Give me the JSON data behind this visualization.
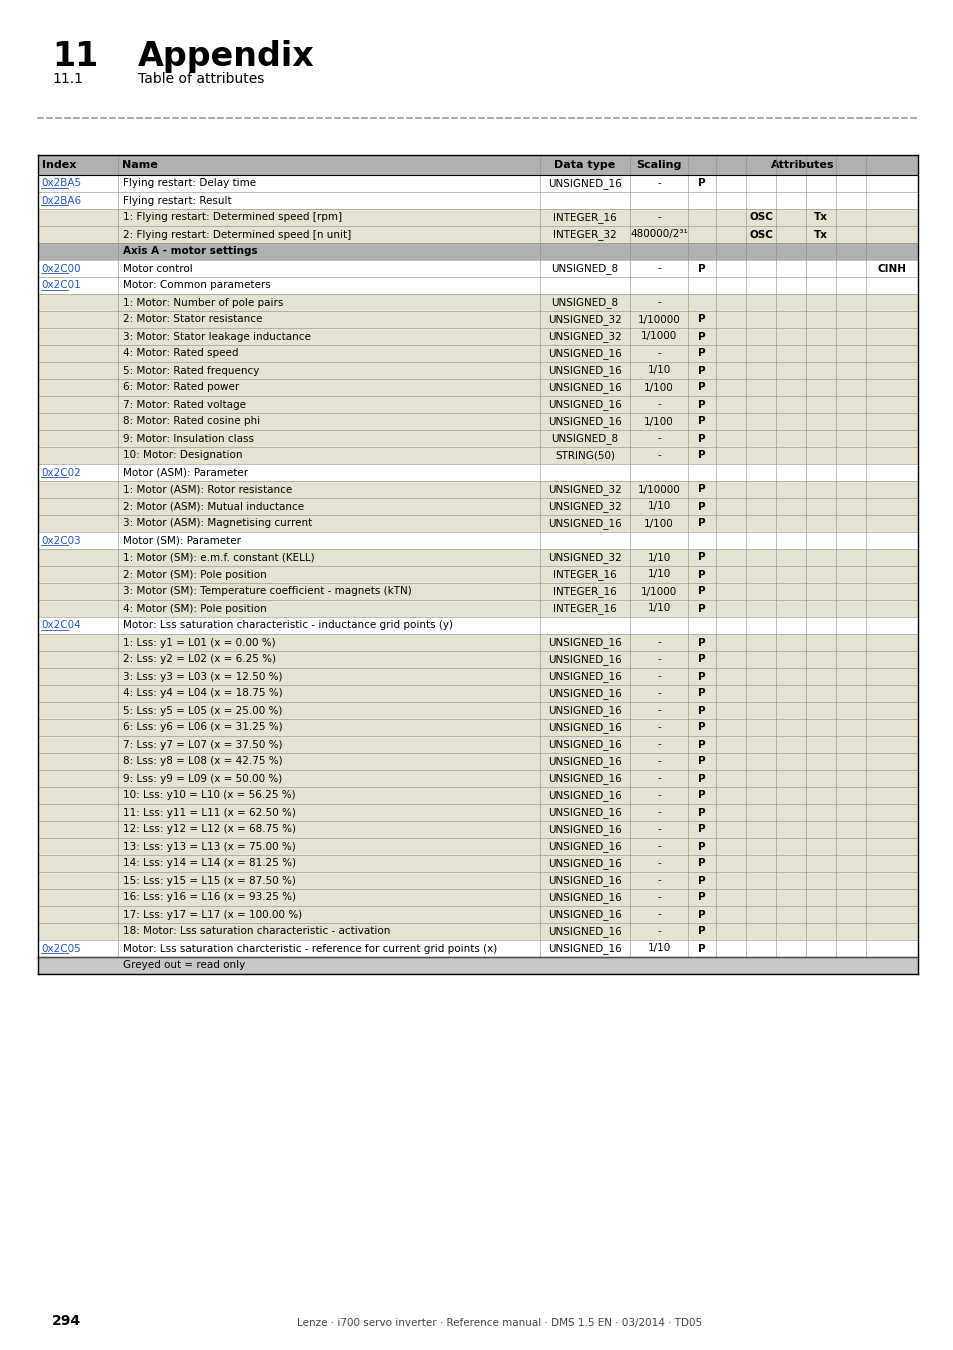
{
  "title_num": "11",
  "title_text": "Appendix",
  "subtitle_num": "11.1",
  "subtitle_text": "Table of attributes",
  "page_footer": "294",
  "page_footer_right": "Lenze · i700 servo inverter · Reference manual · DMS 1.5 EN · 03/2014 · TD05",
  "rows": [
    {
      "index": "0x2BA5",
      "link": true,
      "name": "Flying restart: Delay time",
      "dt": "UNSIGNED_16",
      "sc": "-",
      "P": true,
      "OSC": false,
      "Tx": false,
      "CINH": false,
      "shaded": false,
      "axis_sec": false
    },
    {
      "index": "0x2BA6",
      "link": true,
      "name": "Flying restart: Result",
      "dt": "",
      "sc": "",
      "P": false,
      "OSC": false,
      "Tx": false,
      "CINH": false,
      "shaded": false,
      "axis_sec": false
    },
    {
      "index": "",
      "link": false,
      "name": "1: Flying restart: Determined speed [rpm]",
      "dt": "INTEGER_16",
      "sc": "-",
      "P": false,
      "OSC": true,
      "Tx": true,
      "CINH": false,
      "shaded": true,
      "axis_sec": false
    },
    {
      "index": "",
      "link": false,
      "name": "2: Flying restart: Determined speed [n unit]",
      "dt": "INTEGER_32",
      "sc": "480000/2³¹",
      "P": false,
      "OSC": true,
      "Tx": true,
      "CINH": false,
      "shaded": true,
      "axis_sec": false
    },
    {
      "index": "",
      "link": false,
      "name": "Axis A - motor settings",
      "dt": "",
      "sc": "",
      "P": false,
      "OSC": false,
      "Tx": false,
      "CINH": false,
      "shaded": false,
      "axis_sec": true
    },
    {
      "index": "0x2C00",
      "link": true,
      "name": "Motor control",
      "dt": "UNSIGNED_8",
      "sc": "-",
      "P": true,
      "OSC": false,
      "Tx": false,
      "CINH": true,
      "shaded": false,
      "axis_sec": false
    },
    {
      "index": "0x2C01",
      "link": true,
      "name": "Motor: Common parameters",
      "dt": "",
      "sc": "",
      "P": false,
      "OSC": false,
      "Tx": false,
      "CINH": false,
      "shaded": false,
      "axis_sec": false
    },
    {
      "index": "",
      "link": false,
      "name": "1: Motor: Number of pole pairs",
      "dt": "UNSIGNED_8",
      "sc": "-",
      "P": false,
      "OSC": false,
      "Tx": false,
      "CINH": false,
      "shaded": true,
      "axis_sec": false
    },
    {
      "index": "",
      "link": false,
      "name": "2: Motor: Stator resistance",
      "dt": "UNSIGNED_32",
      "sc": "1/10000",
      "P": true,
      "OSC": false,
      "Tx": false,
      "CINH": false,
      "shaded": true,
      "axis_sec": false
    },
    {
      "index": "",
      "link": false,
      "name": "3: Motor: Stator leakage inductance",
      "dt": "UNSIGNED_32",
      "sc": "1/1000",
      "P": true,
      "OSC": false,
      "Tx": false,
      "CINH": false,
      "shaded": true,
      "axis_sec": false
    },
    {
      "index": "",
      "link": false,
      "name": "4: Motor: Rated speed",
      "dt": "UNSIGNED_16",
      "sc": "-",
      "P": true,
      "OSC": false,
      "Tx": false,
      "CINH": false,
      "shaded": true,
      "axis_sec": false
    },
    {
      "index": "",
      "link": false,
      "name": "5: Motor: Rated frequency",
      "dt": "UNSIGNED_16",
      "sc": "1/10",
      "P": true,
      "OSC": false,
      "Tx": false,
      "CINH": false,
      "shaded": true,
      "axis_sec": false
    },
    {
      "index": "",
      "link": false,
      "name": "6: Motor: Rated power",
      "dt": "UNSIGNED_16",
      "sc": "1/100",
      "P": true,
      "OSC": false,
      "Tx": false,
      "CINH": false,
      "shaded": true,
      "axis_sec": false
    },
    {
      "index": "",
      "link": false,
      "name": "7: Motor: Rated voltage",
      "dt": "UNSIGNED_16",
      "sc": "-",
      "P": true,
      "OSC": false,
      "Tx": false,
      "CINH": false,
      "shaded": true,
      "axis_sec": false
    },
    {
      "index": "",
      "link": false,
      "name": "8: Motor: Rated cosine phi",
      "dt": "UNSIGNED_16",
      "sc": "1/100",
      "P": true,
      "OSC": false,
      "Tx": false,
      "CINH": false,
      "shaded": true,
      "axis_sec": false
    },
    {
      "index": "",
      "link": false,
      "name": "9: Motor: Insulation class",
      "dt": "UNSIGNED_8",
      "sc": "-",
      "P": true,
      "OSC": false,
      "Tx": false,
      "CINH": false,
      "shaded": true,
      "axis_sec": false
    },
    {
      "index": "",
      "link": false,
      "name": "10: Motor: Designation",
      "dt": "STRING(50)",
      "sc": "-",
      "P": true,
      "OSC": false,
      "Tx": false,
      "CINH": false,
      "shaded": true,
      "axis_sec": false
    },
    {
      "index": "0x2C02",
      "link": true,
      "name": "Motor (ASM): Parameter",
      "dt": "",
      "sc": "",
      "P": false,
      "OSC": false,
      "Tx": false,
      "CINH": false,
      "shaded": false,
      "axis_sec": false
    },
    {
      "index": "",
      "link": false,
      "name": "1: Motor (ASM): Rotor resistance",
      "dt": "UNSIGNED_32",
      "sc": "1/10000",
      "P": true,
      "OSC": false,
      "Tx": false,
      "CINH": false,
      "shaded": true,
      "axis_sec": false
    },
    {
      "index": "",
      "link": false,
      "name": "2: Motor (ASM): Mutual inductance",
      "dt": "UNSIGNED_32",
      "sc": "1/10",
      "P": true,
      "OSC": false,
      "Tx": false,
      "CINH": false,
      "shaded": true,
      "axis_sec": false
    },
    {
      "index": "",
      "link": false,
      "name": "3: Motor (ASM): Magnetising current",
      "dt": "UNSIGNED_16",
      "sc": "1/100",
      "P": true,
      "OSC": false,
      "Tx": false,
      "CINH": false,
      "shaded": true,
      "axis_sec": false
    },
    {
      "index": "0x2C03",
      "link": true,
      "name": "Motor (SM): Parameter",
      "dt": "",
      "sc": "",
      "P": false,
      "OSC": false,
      "Tx": false,
      "CINH": false,
      "shaded": false,
      "axis_sec": false
    },
    {
      "index": "",
      "link": false,
      "name": "1: Motor (SM): e.m.f. constant (KELL)",
      "dt": "UNSIGNED_32",
      "sc": "1/10",
      "P": true,
      "OSC": false,
      "Tx": false,
      "CINH": false,
      "shaded": true,
      "axis_sec": false
    },
    {
      "index": "",
      "link": false,
      "name": "2: Motor (SM): Pole position",
      "dt": "INTEGER_16",
      "sc": "1/10",
      "P": true,
      "OSC": false,
      "Tx": false,
      "CINH": false,
      "shaded": true,
      "axis_sec": false
    },
    {
      "index": "",
      "link": false,
      "name": "3: Motor (SM): Temperature coefficient - magnets (kTN)",
      "dt": "INTEGER_16",
      "sc": "1/1000",
      "P": true,
      "OSC": false,
      "Tx": false,
      "CINH": false,
      "shaded": true,
      "axis_sec": false
    },
    {
      "index": "",
      "link": false,
      "name": "4: Motor (SM): Pole position",
      "dt": "INTEGER_16",
      "sc": "1/10",
      "P": true,
      "OSC": false,
      "Tx": false,
      "CINH": false,
      "shaded": true,
      "axis_sec": false
    },
    {
      "index": "0x2C04",
      "link": true,
      "name": "Motor: Lss saturation characteristic - inductance grid points (y)",
      "dt": "",
      "sc": "",
      "P": false,
      "OSC": false,
      "Tx": false,
      "CINH": false,
      "shaded": false,
      "axis_sec": false
    },
    {
      "index": "",
      "link": false,
      "name": "1: Lss: y1 = L01 (x = 0.00 %)",
      "dt": "UNSIGNED_16",
      "sc": "-",
      "P": true,
      "OSC": false,
      "Tx": false,
      "CINH": false,
      "shaded": true,
      "axis_sec": false
    },
    {
      "index": "",
      "link": false,
      "name": "2: Lss: y2 = L02 (x = 6.25 %)",
      "dt": "UNSIGNED_16",
      "sc": "-",
      "P": true,
      "OSC": false,
      "Tx": false,
      "CINH": false,
      "shaded": true,
      "axis_sec": false
    },
    {
      "index": "",
      "link": false,
      "name": "3: Lss: y3 = L03 (x = 12.50 %)",
      "dt": "UNSIGNED_16",
      "sc": "-",
      "P": true,
      "OSC": false,
      "Tx": false,
      "CINH": false,
      "shaded": true,
      "axis_sec": false
    },
    {
      "index": "",
      "link": false,
      "name": "4: Lss: y4 = L04 (x = 18.75 %)",
      "dt": "UNSIGNED_16",
      "sc": "-",
      "P": true,
      "OSC": false,
      "Tx": false,
      "CINH": false,
      "shaded": true,
      "axis_sec": false
    },
    {
      "index": "",
      "link": false,
      "name": "5: Lss: y5 = L05 (x = 25.00 %)",
      "dt": "UNSIGNED_16",
      "sc": "-",
      "P": true,
      "OSC": false,
      "Tx": false,
      "CINH": false,
      "shaded": true,
      "axis_sec": false
    },
    {
      "index": "",
      "link": false,
      "name": "6: Lss: y6 = L06 (x = 31.25 %)",
      "dt": "UNSIGNED_16",
      "sc": "-",
      "P": true,
      "OSC": false,
      "Tx": false,
      "CINH": false,
      "shaded": true,
      "axis_sec": false
    },
    {
      "index": "",
      "link": false,
      "name": "7: Lss: y7 = L07 (x = 37.50 %)",
      "dt": "UNSIGNED_16",
      "sc": "-",
      "P": true,
      "OSC": false,
      "Tx": false,
      "CINH": false,
      "shaded": true,
      "axis_sec": false
    },
    {
      "index": "",
      "link": false,
      "name": "8: Lss: y8 = L08 (x = 42.75 %)",
      "dt": "UNSIGNED_16",
      "sc": "-",
      "P": true,
      "OSC": false,
      "Tx": false,
      "CINH": false,
      "shaded": true,
      "axis_sec": false
    },
    {
      "index": "",
      "link": false,
      "name": "9: Lss: y9 = L09 (x = 50.00 %)",
      "dt": "UNSIGNED_16",
      "sc": "-",
      "P": true,
      "OSC": false,
      "Tx": false,
      "CINH": false,
      "shaded": true,
      "axis_sec": false
    },
    {
      "index": "",
      "link": false,
      "name": "10: Lss: y10 = L10 (x = 56.25 %)",
      "dt": "UNSIGNED_16",
      "sc": "-",
      "P": true,
      "OSC": false,
      "Tx": false,
      "CINH": false,
      "shaded": true,
      "axis_sec": false
    },
    {
      "index": "",
      "link": false,
      "name": "11: Lss: y11 = L11 (x = 62.50 %)",
      "dt": "UNSIGNED_16",
      "sc": "-",
      "P": true,
      "OSC": false,
      "Tx": false,
      "CINH": false,
      "shaded": true,
      "axis_sec": false
    },
    {
      "index": "",
      "link": false,
      "name": "12: Lss: y12 = L12 (x = 68.75 %)",
      "dt": "UNSIGNED_16",
      "sc": "-",
      "P": true,
      "OSC": false,
      "Tx": false,
      "CINH": false,
      "shaded": true,
      "axis_sec": false
    },
    {
      "index": "",
      "link": false,
      "name": "13: Lss: y13 = L13 (x = 75.00 %)",
      "dt": "UNSIGNED_16",
      "sc": "-",
      "P": true,
      "OSC": false,
      "Tx": false,
      "CINH": false,
      "shaded": true,
      "axis_sec": false
    },
    {
      "index": "",
      "link": false,
      "name": "14: Lss: y14 = L14 (x = 81.25 %)",
      "dt": "UNSIGNED_16",
      "sc": "-",
      "P": true,
      "OSC": false,
      "Tx": false,
      "CINH": false,
      "shaded": true,
      "axis_sec": false
    },
    {
      "index": "",
      "link": false,
      "name": "15: Lss: y15 = L15 (x = 87.50 %)",
      "dt": "UNSIGNED_16",
      "sc": "-",
      "P": true,
      "OSC": false,
      "Tx": false,
      "CINH": false,
      "shaded": true,
      "axis_sec": false
    },
    {
      "index": "",
      "link": false,
      "name": "16: Lss: y16 = L16 (x = 93.25 %)",
      "dt": "UNSIGNED_16",
      "sc": "-",
      "P": true,
      "OSC": false,
      "Tx": false,
      "CINH": false,
      "shaded": true,
      "axis_sec": false
    },
    {
      "index": "",
      "link": false,
      "name": "17: Lss: y17 = L17 (x = 100.00 %)",
      "dt": "UNSIGNED_16",
      "sc": "-",
      "P": true,
      "OSC": false,
      "Tx": false,
      "CINH": false,
      "shaded": true,
      "axis_sec": false
    },
    {
      "index": "",
      "link": false,
      "name": "18: Motor: Lss saturation characteristic - activation",
      "dt": "UNSIGNED_16",
      "sc": "-",
      "P": true,
      "OSC": false,
      "Tx": false,
      "CINH": false,
      "shaded": true,
      "axis_sec": false
    },
    {
      "index": "0x2C05",
      "link": true,
      "name": "Motor: Lss saturation charcteristic - reference for current grid points (x)",
      "dt": "UNSIGNED_16",
      "sc": "1/10",
      "P": true,
      "OSC": false,
      "Tx": false,
      "CINH": false,
      "shaded": false,
      "axis_sec": false
    }
  ]
}
